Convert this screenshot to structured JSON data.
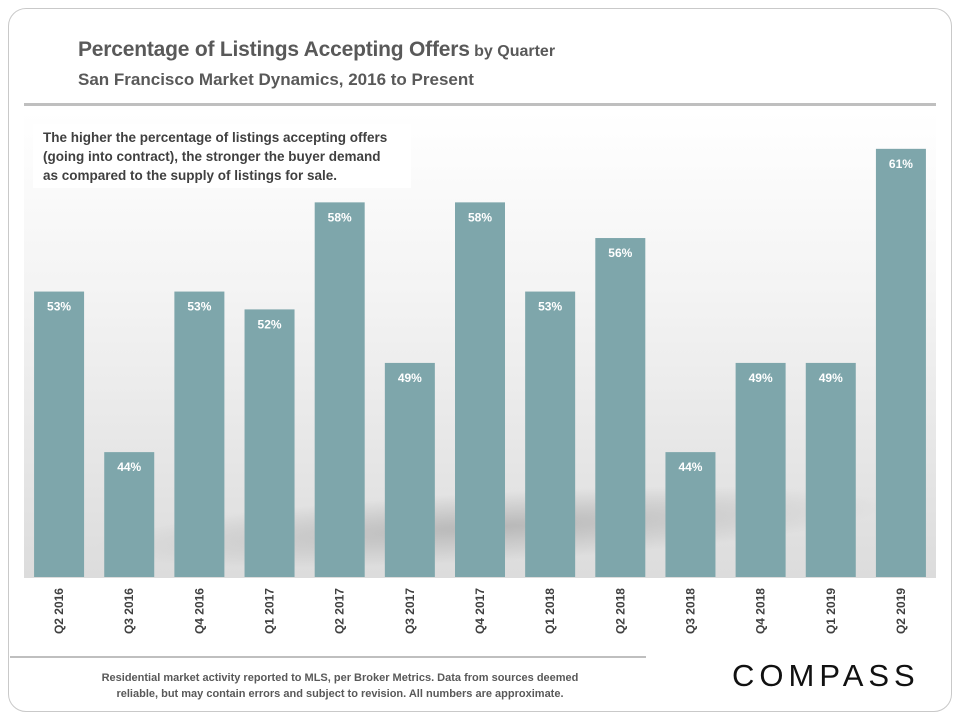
{
  "header": {
    "title": "Percentage of Listings Accepting Offers",
    "title_suffix": "by Quarter",
    "subtitle": "San Francisco Market Dynamics, 2016 to Present"
  },
  "note": {
    "lines": [
      "The higher the percentage of listings accepting offers",
      "(going into contract), the stronger the buyer demand",
      "as compared to the supply of listings for sale."
    ]
  },
  "footer": {
    "lines": [
      "Residential market activity reported to MLS, per Broker Metrics. Data from sources deemed",
      "reliable, but may contain errors and subject to revision. All numbers are approximate."
    ],
    "brand": "COMPASS"
  },
  "colors": {
    "bar": "#7ea6ab",
    "label": "#ffffff",
    "axis_text": "#404040"
  },
  "chart_data": {
    "type": "bar",
    "title": "Percentage of Listings Accepting Offers by Quarter",
    "subtitle": "San Francisco Market Dynamics, 2016 to Present",
    "categories": [
      "Q2 2016",
      "Q3 2016",
      "Q4 2016",
      "Q1 2017",
      "Q2 2017",
      "Q3 2017",
      "Q4 2017",
      "Q1 2018",
      "Q2 2018",
      "Q3 2018",
      "Q4 2018",
      "Q1 2019",
      "Q2 2019"
    ],
    "values": [
      53,
      44,
      53,
      52,
      58,
      49,
      58,
      53,
      56,
      44,
      49,
      49,
      61
    ],
    "data_labels": [
      "53%",
      "44%",
      "53%",
      "52%",
      "58%",
      "49%",
      "58%",
      "53%",
      "56%",
      "44%",
      "49%",
      "49%",
      "61%"
    ],
    "ylim": [
      37,
      62
    ],
    "xlabel": "",
    "ylabel": "",
    "grid": false,
    "legend": "none"
  }
}
